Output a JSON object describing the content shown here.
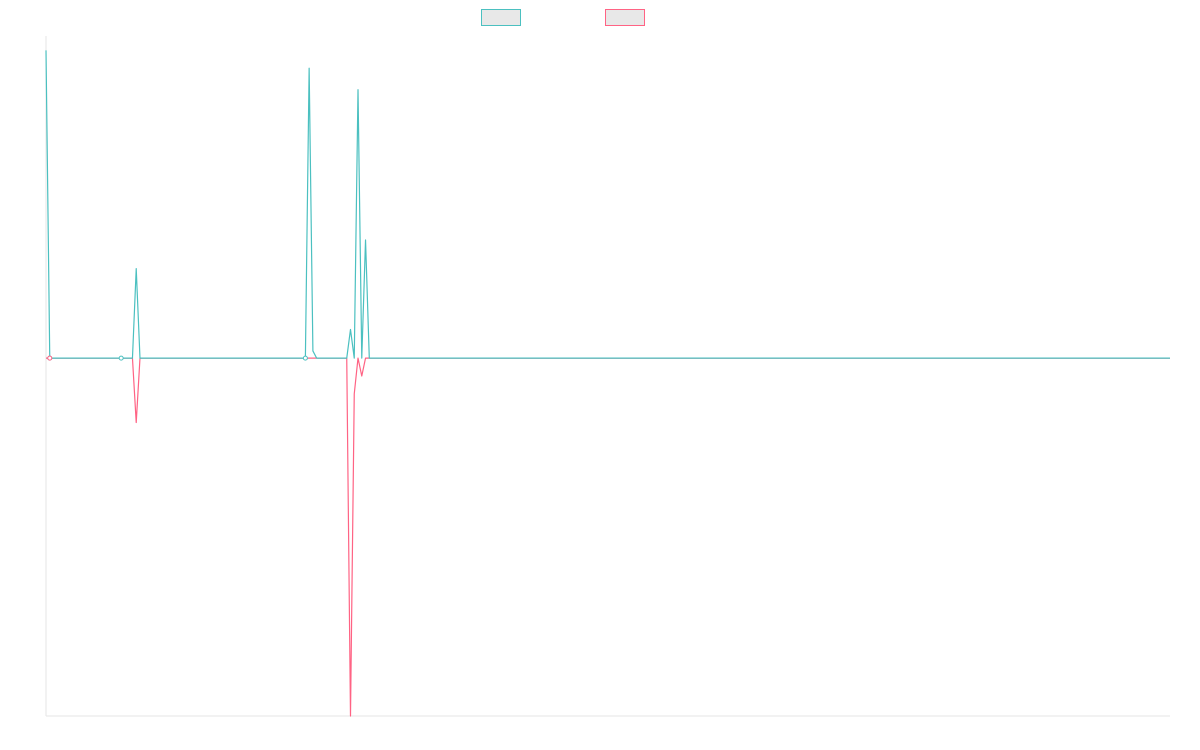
{
  "chart_data": {
    "type": "line",
    "title": "",
    "xlabel": "",
    "ylabel": "",
    "legend_position": "top-center",
    "grid": false,
    "x_count": 300,
    "ylim": [
      -1.0,
      0.9
    ],
    "baseline": 0,
    "series": [
      {
        "color": "#4bc0c0",
        "fill": "#e8e8e8",
        "points": [
          [
            0,
            0.86
          ],
          [
            1,
            0.0
          ],
          [
            2,
            0.0
          ],
          [
            20,
            0.0
          ],
          [
            23,
            0.0
          ],
          [
            24,
            0.25
          ],
          [
            25,
            0.0
          ],
          [
            69,
            0.0
          ],
          [
            70,
            0.81
          ],
          [
            71,
            0.02
          ],
          [
            72,
            0.0
          ],
          [
            80,
            0.0
          ],
          [
            81,
            0.08
          ],
          [
            82,
            0.0
          ],
          [
            83,
            0.75
          ],
          [
            84,
            0.0
          ],
          [
            85,
            0.33
          ],
          [
            86,
            0.0
          ],
          [
            299,
            0.0
          ]
        ],
        "markers": [
          1,
          20,
          69
        ]
      },
      {
        "color": "#ff6384",
        "fill": "#e8e8e8",
        "points": [
          [
            0,
            0.0
          ],
          [
            1,
            0.0
          ],
          [
            2,
            0.0
          ],
          [
            23,
            0.0
          ],
          [
            24,
            -0.18
          ],
          [
            25,
            0.0
          ],
          [
            80,
            0.0
          ],
          [
            81,
            -1.0
          ],
          [
            82,
            -0.1
          ],
          [
            83,
            0.0
          ],
          [
            84,
            -0.05
          ],
          [
            85,
            0.0
          ],
          [
            299,
            0.0
          ]
        ],
        "markers": [
          1
        ]
      }
    ]
  }
}
